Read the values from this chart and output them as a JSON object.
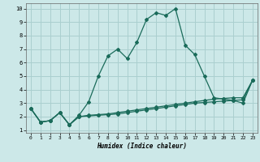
{
  "xlabel": "Humidex (Indice chaleur)",
  "background_color": "#cce8e8",
  "grid_color": "#aacfcf",
  "line_color": "#1a6b5a",
  "xlim": [
    -0.5,
    23.5
  ],
  "ylim": [
    0.8,
    10.4
  ],
  "yticks": [
    1,
    2,
    3,
    4,
    5,
    6,
    7,
    8,
    9,
    10
  ],
  "xticks": [
    0,
    1,
    2,
    3,
    4,
    5,
    6,
    7,
    8,
    9,
    10,
    11,
    12,
    13,
    14,
    15,
    16,
    17,
    18,
    19,
    20,
    21,
    22,
    23
  ],
  "series1_x": [
    0,
    1,
    2,
    3,
    4,
    5,
    6,
    7,
    8,
    9,
    10,
    11,
    12,
    13,
    14,
    15,
    16,
    17,
    18,
    19,
    20,
    21,
    22,
    23
  ],
  "series1_y": [
    2.6,
    1.6,
    1.7,
    2.3,
    1.4,
    2.1,
    3.1,
    5.0,
    6.5,
    7.0,
    6.3,
    7.5,
    9.2,
    9.7,
    9.5,
    10.0,
    7.3,
    6.6,
    5.0,
    3.4,
    3.3,
    3.2,
    3.0,
    4.7
  ],
  "series2_x": [
    0,
    1,
    2,
    3,
    4,
    5,
    6,
    7,
    8,
    9,
    10,
    11,
    12,
    13,
    14,
    15,
    16,
    17,
    18,
    19,
    20,
    21,
    22,
    23
  ],
  "series2_y": [
    2.6,
    1.6,
    1.7,
    2.3,
    1.4,
    2.0,
    2.1,
    2.15,
    2.2,
    2.3,
    2.4,
    2.5,
    2.6,
    2.7,
    2.8,
    2.9,
    3.0,
    3.1,
    3.2,
    3.3,
    3.35,
    3.4,
    3.4,
    4.7
  ],
  "series3_x": [
    0,
    1,
    2,
    3,
    4,
    5,
    6,
    7,
    8,
    9,
    10,
    11,
    12,
    13,
    14,
    15,
    16,
    17,
    18,
    19,
    20,
    21,
    22,
    23
  ],
  "series3_y": [
    2.6,
    1.6,
    1.7,
    2.3,
    1.4,
    2.0,
    2.05,
    2.1,
    2.15,
    2.2,
    2.3,
    2.4,
    2.5,
    2.6,
    2.7,
    2.8,
    2.9,
    3.0,
    3.05,
    3.1,
    3.15,
    3.2,
    3.25,
    4.7
  ]
}
